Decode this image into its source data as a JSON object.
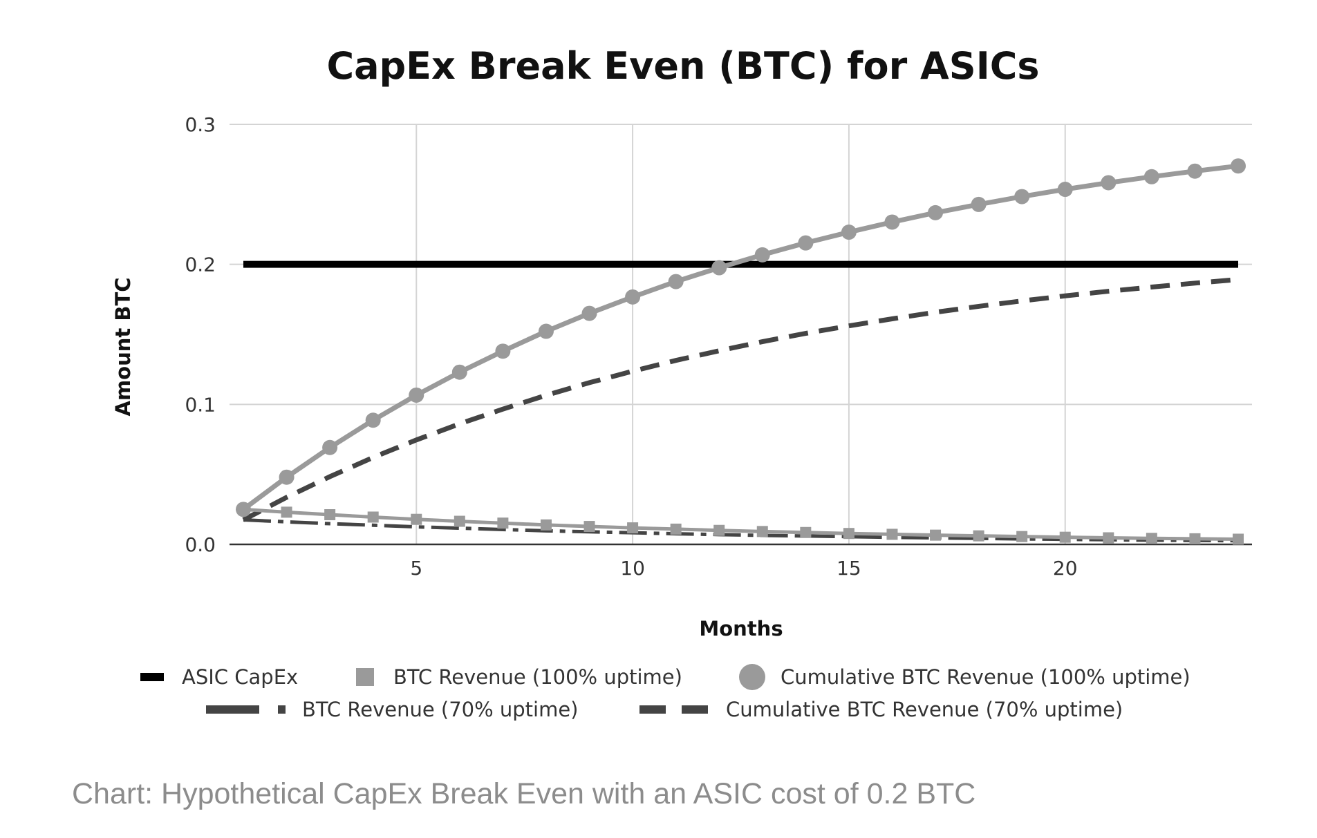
{
  "chart_data": {
    "type": "line",
    "title": "CapEx Break Even (BTC) for ASICs",
    "xlabel": "Months",
    "ylabel": "Amount BTC",
    "xlim": [
      1,
      24
    ],
    "ylim": [
      0,
      0.3
    ],
    "x_ticks": [
      5,
      10,
      15,
      20
    ],
    "x_tick_labels": [
      "5",
      "10",
      "15",
      "20"
    ],
    "y_ticks": [
      0,
      0.1,
      0.2,
      0.3
    ],
    "y_tick_labels": [
      "0.0",
      "0.1",
      "0.2",
      "0.3"
    ],
    "grid": true,
    "legend_position": "bottom",
    "x": [
      1,
      2,
      3,
      4,
      5,
      6,
      7,
      8,
      9,
      10,
      11,
      12,
      13,
      14,
      15,
      16,
      17,
      18,
      19,
      20,
      21,
      22,
      23,
      24
    ],
    "series": [
      {
        "name": "ASIC CapEx",
        "style": "solid-thick",
        "color": "#000000",
        "values": [
          0.2,
          0.2,
          0.2,
          0.2,
          0.2,
          0.2,
          0.2,
          0.2,
          0.2,
          0.2,
          0.2,
          0.2,
          0.2,
          0.2,
          0.2,
          0.2,
          0.2,
          0.2,
          0.2,
          0.2,
          0.2,
          0.2,
          0.2,
          0.2
        ]
      },
      {
        "name": "BTC Revenue (100% uptime)",
        "style": "square-markers",
        "color": "#9a9a9a",
        "values": [
          0.025,
          0.023,
          0.0212,
          0.0195,
          0.0179,
          0.0165,
          0.0152,
          0.0139,
          0.0128,
          0.0118,
          0.0109,
          0.01,
          0.0092,
          0.0085,
          0.0078,
          0.0072,
          0.0066,
          0.0061,
          0.0056,
          0.0051,
          0.0047,
          0.0043,
          0.004,
          0.0037
        ]
      },
      {
        "name": "Cumulative BTC Revenue (100% uptime)",
        "style": "circle-markers",
        "color": "#9a9a9a",
        "values": [
          0.025,
          0.048,
          0.0692,
          0.0887,
          0.1066,
          0.123,
          0.138,
          0.1522,
          0.165,
          0.1767,
          0.1877,
          0.1976,
          0.2068,
          0.2153,
          0.223,
          0.2302,
          0.2369,
          0.2428,
          0.2484,
          0.2536,
          0.2583,
          0.2626,
          0.2666,
          0.2703
        ]
      },
      {
        "name": "BTC Revenue (70% uptime)",
        "style": "dash-dot",
        "color": "#444444",
        "values": [
          0.0175,
          0.0161,
          0.0148,
          0.0137,
          0.0125,
          0.0116,
          0.0106,
          0.0097,
          0.009,
          0.0083,
          0.0076,
          0.007,
          0.0064,
          0.006,
          0.0055,
          0.005,
          0.0046,
          0.0043,
          0.0039,
          0.0036,
          0.0033,
          0.003,
          0.0028,
          0.0026
        ]
      },
      {
        "name": "Cumulative BTC Revenue (70% uptime)",
        "style": "dashed",
        "color": "#444444",
        "values": [
          0.0175,
          0.0336,
          0.0484,
          0.0621,
          0.0746,
          0.0861,
          0.0966,
          0.1065,
          0.1155,
          0.1237,
          0.1314,
          0.1383,
          0.1448,
          0.1507,
          0.1561,
          0.1611,
          0.1658,
          0.17,
          0.1739,
          0.1775,
          0.1808,
          0.1838,
          0.1866,
          0.1892
        ]
      }
    ]
  },
  "caption": "Chart: Hypothetical CapEx Break Even with an ASIC cost of 0.2 BTC"
}
